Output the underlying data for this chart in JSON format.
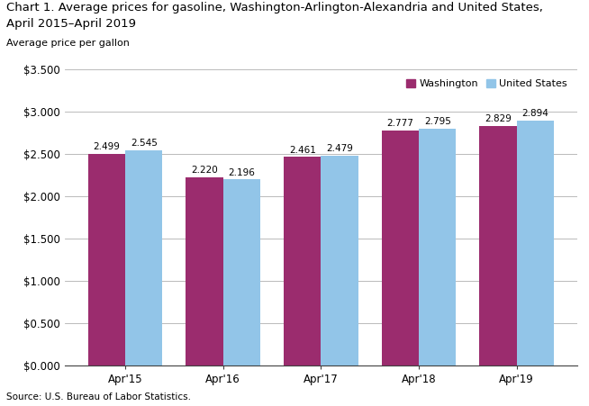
{
  "title_line1": "Chart 1. Average prices for gasoline, Washington-Arlington-Alexandria and United States,",
  "title_line2": "April 2015–April 2019",
  "ylabel": "Average price per gallon",
  "source": "Source: U.S. Bureau of Labor Statistics.",
  "categories": [
    "Apr'15",
    "Apr'16",
    "Apr'17",
    "Apr'18",
    "Apr'19"
  ],
  "washington_values": [
    2.499,
    2.22,
    2.461,
    2.777,
    2.829
  ],
  "us_values": [
    2.545,
    2.196,
    2.479,
    2.795,
    2.894
  ],
  "washington_color": "#9B2C6E",
  "us_color": "#92C5E8",
  "ylim": [
    0,
    3.5
  ],
  "yticks": [
    0.0,
    0.5,
    1.0,
    1.5,
    2.0,
    2.5,
    3.0,
    3.5
  ],
  "ytick_labels": [
    "$0.000",
    "$0.500",
    "$1.000",
    "$1.500",
    "$2.000",
    "$2.500",
    "$3.000",
    "$3.500"
  ],
  "legend_washington": "Washington",
  "legend_us": "United States",
  "bar_width": 0.38,
  "title_fontsize": 9.5,
  "label_fontsize": 8,
  "tick_fontsize": 8.5,
  "annotation_fontsize": 7.5,
  "source_fontsize": 7.5,
  "background_color": "#ffffff",
  "grid_color": "#b0b0b0"
}
